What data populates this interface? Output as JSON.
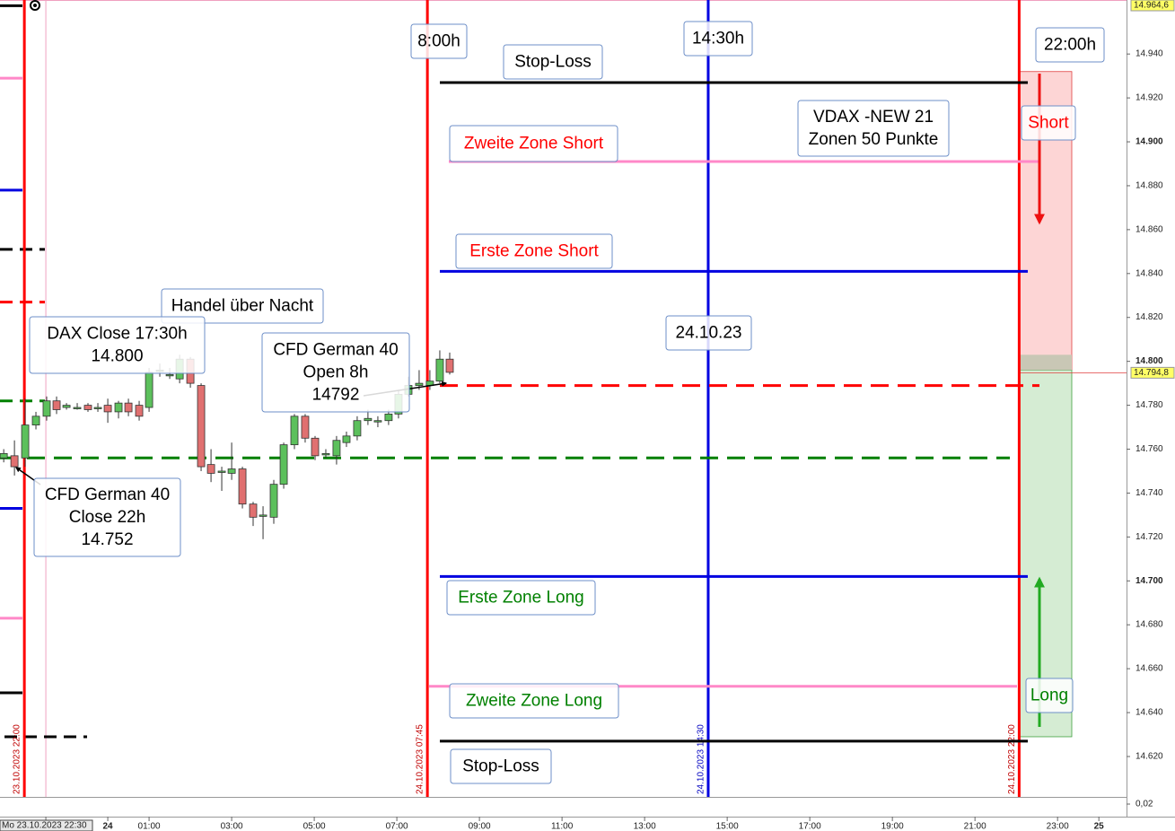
{
  "chart_data": {
    "type": "candlestick",
    "up_color": "#5cc05c",
    "down_color": "#e07070",
    "x": [
      -2.52,
      -2.26,
      -2.0,
      -1.74,
      -1.48,
      -1.24,
      -1.0,
      -0.74,
      -0.48,
      -0.24,
      0,
      0.26,
      0.5,
      0.76,
      1.0,
      1.26,
      1.5,
      1.74,
      2.0,
      2.26,
      2.5,
      2.76,
      3.0,
      3.26,
      3.52,
      3.76,
      4.02,
      4.26,
      4.52,
      4.78,
      5.02,
      5.28,
      5.54,
      5.78,
      6.04,
      6.3,
      6.54,
      6.8,
      7.04,
      7.28,
      7.54,
      7.8,
      8.04,
      8.28
    ],
    "open": [
      14756,
      14757,
      14756,
      14771,
      14775,
      14782,
      14779,
      14779,
      14780,
      14779,
      14780,
      14777,
      14781,
      14780,
      14779,
      14796,
      14794,
      14792,
      14801,
      14789,
      14753,
      14750,
      14749,
      14751,
      14735,
      14730,
      14729,
      14744,
      14762,
      14775,
      14765,
      14758,
      14757,
      14763,
      14766,
      14773,
      14773,
      14773,
      14776,
      14785,
      14789,
      14789,
      14791,
      14801
    ],
    "high": [
      14760,
      14764,
      14783,
      14777,
      14784,
      14784,
      14781,
      14781,
      14781,
      14781,
      14783,
      14782,
      14783,
      14782,
      14797,
      14799,
      14797,
      14803,
      14802,
      14790,
      14760,
      14752,
      14763,
      14752,
      14736,
      14734,
      14746,
      14763,
      14776,
      14776,
      14766,
      14760,
      14766,
      14768,
      14775,
      14778,
      14775,
      14778,
      14787,
      14793,
      14796,
      14796,
      14805,
      14804
    ],
    "low": [
      14754,
      14748,
      14752,
      14769,
      14773,
      14776,
      14778,
      14778,
      14777,
      14777,
      14772,
      14774,
      14775,
      14773,
      14777,
      14793,
      14792,
      14790,
      14788,
      14750,
      14745,
      14741,
      14746,
      14733,
      14725,
      14719,
      14726,
      14742,
      14760,
      14763,
      14755,
      14756,
      14753,
      14761,
      14764,
      14771,
      14770,
      14771,
      14774,
      14784,
      14787,
      14787,
      14790,
      14794
    ],
    "close": [
      14758,
      14752,
      14771,
      14775,
      14782,
      14778,
      14780,
      14779,
      14778,
      14779,
      14777,
      14781,
      14777,
      14775,
      14795,
      14796,
      14794,
      14801,
      14790,
      14752,
      14749,
      14750,
      14751,
      14735,
      14729,
      14730,
      14744,
      14762,
      14775,
      14765,
      14757,
      14758,
      14764,
      14766,
      14773,
      14774,
      14773,
      14776,
      14785,
      14789,
      14790,
      14791,
      14801,
      14795
    ],
    "xlim": [
      -2.61,
      24.67
    ],
    "ylim": [
      14601.6,
      14964.6
    ],
    "xticks": [
      {
        "value": -1.5,
        "label": "Mo 23.10.2023 22:30"
      },
      {
        "value": 0,
        "label": "24"
      },
      {
        "value": 1,
        "label": "01:00"
      },
      {
        "value": 3,
        "label": "03:00"
      },
      {
        "value": 5,
        "label": "05:00"
      },
      {
        "value": 7,
        "label": "07:00"
      },
      {
        "value": 9,
        "label": "09:00"
      },
      {
        "value": 11,
        "label": "11:00"
      },
      {
        "value": 13,
        "label": "13:00"
      },
      {
        "value": 15,
        "label": "15:00"
      },
      {
        "value": 17,
        "label": "17:00"
      },
      {
        "value": 19,
        "label": "19:00"
      },
      {
        "value": 21,
        "label": "21:00"
      },
      {
        "value": 23,
        "label": "23:00"
      },
      {
        "value": 24,
        "label": "25"
      }
    ],
    "yticks": [
      {
        "value": 14620,
        "label": "14.620"
      },
      {
        "value": 14640,
        "label": "14.640"
      },
      {
        "value": 14660,
        "label": "14.660"
      },
      {
        "value": 14680,
        "label": "14.680"
      },
      {
        "value": 14700,
        "label": "14.700"
      },
      {
        "value": 14720,
        "label": "14.720"
      },
      {
        "value": 14740,
        "label": "14.740"
      },
      {
        "value": 14760,
        "label": "14.760"
      },
      {
        "value": 14780,
        "label": "14.780"
      },
      {
        "value": 14800,
        "label": "14.800"
      },
      {
        "value": 14820,
        "label": "14.820"
      },
      {
        "value": 14840,
        "label": "14.840"
      },
      {
        "value": 14860,
        "label": "14.860"
      },
      {
        "value": 14880,
        "label": "14.880"
      },
      {
        "value": 14900,
        "label": "14.900"
      },
      {
        "value": 14920,
        "label": "14.920"
      },
      {
        "value": 14940,
        "label": "14.940"
      }
    ],
    "top_price": {
      "value": 14964.6,
      "label": "14.964,6"
    },
    "last_price": {
      "value": 14794.8,
      "label": "14.794,8"
    },
    "indicator_tick": {
      "value": 0.02,
      "label": "0,02"
    },
    "levels": [
      {
        "value": 14927,
        "color": "#000000",
        "style": "solid"
      },
      {
        "value": 14891,
        "color": "#ff88c8",
        "style": "solid"
      },
      {
        "value": 14841,
        "color": "#0000e0",
        "style": "solid"
      },
      {
        "value": 14789,
        "color": "#ff0000",
        "style": "dashed"
      },
      {
        "value": 14756,
        "color": "#008000",
        "style": "dashed"
      },
      {
        "value": 14702,
        "color": "#0000e0",
        "style": "solid"
      },
      {
        "value": 14652,
        "color": "#ff88c8",
        "style": "solid"
      },
      {
        "value": 14627,
        "color": "#000000",
        "style": "solid"
      }
    ],
    "previous_levels": [
      {
        "value": 14962,
        "color": "#000000",
        "style": "solid"
      },
      {
        "value": 14929,
        "color": "#ff88c8",
        "style": "solid"
      },
      {
        "value": 14878,
        "color": "#0000e0",
        "style": "solid"
      },
      {
        "value": 14851,
        "color": "#000000",
        "style": "dashed"
      },
      {
        "value": 14827,
        "color": "#ff0000",
        "style": "dashed"
      },
      {
        "value": 14782,
        "color": "#008000",
        "style": "dashed"
      },
      {
        "value": 14733,
        "color": "#0000e0",
        "style": "solid"
      },
      {
        "value": 14683,
        "color": "#ff88c8",
        "style": "solid"
      },
      {
        "value": 14649,
        "color": "#000000",
        "style": "solid"
      },
      {
        "value": 14629,
        "color": "#000000",
        "style": "dashed"
      }
    ],
    "zones": [
      {
        "from": 14796,
        "to": 14932,
        "color": "#fdd5d5"
      },
      {
        "from": 14629,
        "to": 14796,
        "color": "#d5ecd3"
      },
      {
        "from": 14796,
        "to": 14803,
        "color": "#c9c7b5"
      }
    ],
    "vlines": [
      {
        "value": -2.02,
        "label": "23.10.2023 22:00",
        "color": "#ff0000"
      },
      {
        "value": 7.74,
        "label": "24.10.2023 07:45",
        "color": "#ff0000"
      },
      {
        "value": 14.54,
        "label": "24.10.2023 14:30",
        "color": "#0000e0"
      },
      {
        "value": 22.07,
        "label": "24.10.2023 22:00",
        "color": "#ff0000"
      }
    ],
    "annotations": [
      {
        "lines": [
          "8:00h"
        ],
        "color": "#000000"
      },
      {
        "lines": [
          "14:30h"
        ],
        "color": "#000000"
      },
      {
        "lines": [
          "22:00h"
        ],
        "color": "#000000"
      },
      {
        "lines": [
          "Stop-Loss"
        ],
        "color": "#000000"
      },
      {
        "lines": [
          "Zweite Zone Short"
        ],
        "color": "#ff0000"
      },
      {
        "lines": [
          "VDAX -NEW 21",
          "Zonen 50 Punkte"
        ],
        "color": "#000000"
      },
      {
        "lines": [
          "Short"
        ],
        "color": "#ff0000"
      },
      {
        "lines": [
          "Erste Zone Short"
        ],
        "color": "#ff0000"
      },
      {
        "lines": [
          "Handel über Nacht"
        ],
        "color": "#000000"
      },
      {
        "lines": [
          "DAX Close 17:30h",
          "14.800"
        ],
        "color": "#000000"
      },
      {
        "lines": [
          "24.10.23"
        ],
        "color": "#000000"
      },
      {
        "lines": [
          "CFD German 40",
          "Open 8h",
          "14792"
        ],
        "color": "#000000"
      },
      {
        "lines": [
          "CFD German 40",
          "Close 22h",
          "14.752"
        ],
        "color": "#000000"
      },
      {
        "lines": [
          "Erste Zone Long"
        ],
        "color": "#008000"
      },
      {
        "lines": [
          "Long"
        ],
        "color": "#008000"
      },
      {
        "lines": [
          "Zweite Zone Long"
        ],
        "color": "#008000"
      },
      {
        "lines": [
          "Stop-Loss"
        ],
        "color": "#000000"
      }
    ]
  }
}
